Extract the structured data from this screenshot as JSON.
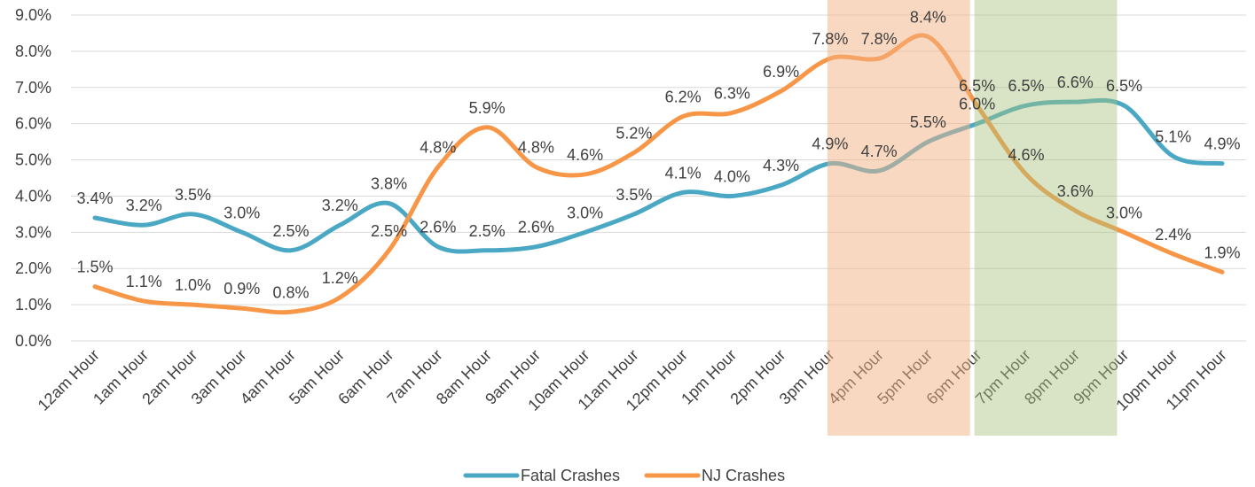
{
  "chart_data": {
    "type": "line",
    "categories": [
      "12am Hour",
      "1am Hour",
      "2am Hour",
      "3am Hour",
      "4am Hour",
      "5am Hour",
      "6am Hour",
      "7am Hour",
      "8am Hour",
      "9am Hour",
      "10am Hour",
      "11am Hour",
      "12pm Hour",
      "1pm Hour",
      "2pm Hour",
      "3pm Hour",
      "4pm Hour",
      "5pm Hour",
      "6pm Hour",
      "7pm Hour",
      "8pm Hour",
      "9pm Hour",
      "10pm Hour",
      "11pm Hour"
    ],
    "series": [
      {
        "name": "Fatal Crashes",
        "color": "#4aa8c4",
        "values": [
          3.4,
          3.2,
          3.5,
          3.0,
          2.5,
          3.2,
          3.8,
          2.6,
          2.5,
          2.6,
          3.0,
          3.5,
          4.1,
          4.0,
          4.3,
          4.9,
          4.7,
          5.5,
          6.0,
          6.5,
          6.6,
          6.5,
          5.1,
          4.9
        ],
        "value_labels": [
          "3.4%",
          "3.2%",
          "3.5%",
          "3.0%",
          "2.5%",
          "3.2%",
          "3.8%",
          "2.6%",
          "2.5%",
          "2.6%",
          "3.0%",
          "3.5%",
          "4.1%",
          "4.0%",
          "4.3%",
          "4.9%",
          "4.7%",
          "5.5%",
          "6.0%",
          "6.5%",
          "6.6%",
          "6.5%",
          "5.1%",
          "4.9%"
        ]
      },
      {
        "name": "NJ Crashes",
        "color": "#f79646",
        "values": [
          1.5,
          1.1,
          1.0,
          0.9,
          0.8,
          1.2,
          2.5,
          4.8,
          5.9,
          4.8,
          4.6,
          5.2,
          6.2,
          6.3,
          6.9,
          7.8,
          7.8,
          8.4,
          6.5,
          4.6,
          3.6,
          3.0,
          2.4,
          1.9
        ],
        "value_labels": [
          "1.5%",
          "1.1%",
          "1.0%",
          "0.9%",
          "0.8%",
          "1.2%",
          "2.5%",
          "4.8%",
          "5.9%",
          "4.8%",
          "4.6%",
          "5.2%",
          "6.2%",
          "6.3%",
          "6.9%",
          "7.8%",
          "7.8%",
          "8.4%",
          "6.5%",
          "4.6%",
          "3.6%",
          "3.0%",
          "2.4%",
          "1.9%"
        ]
      }
    ],
    "ylim": [
      0,
      9
    ],
    "yticks": [
      {
        "value": 0,
        "label": "0.0%"
      },
      {
        "value": 1,
        "label": "1.0%"
      },
      {
        "value": 2,
        "label": "2.0%"
      },
      {
        "value": 3,
        "label": "3.0%"
      },
      {
        "value": 4,
        "label": "4.0%"
      },
      {
        "value": 5,
        "label": "5.0%"
      },
      {
        "value": 6,
        "label": "6.0%"
      },
      {
        "value": 7,
        "label": "7.0%"
      },
      {
        "value": 8,
        "label": "8.0%"
      },
      {
        "value": 9,
        "label": "9.0%"
      }
    ],
    "grid": true,
    "legend": "bottom"
  }
}
